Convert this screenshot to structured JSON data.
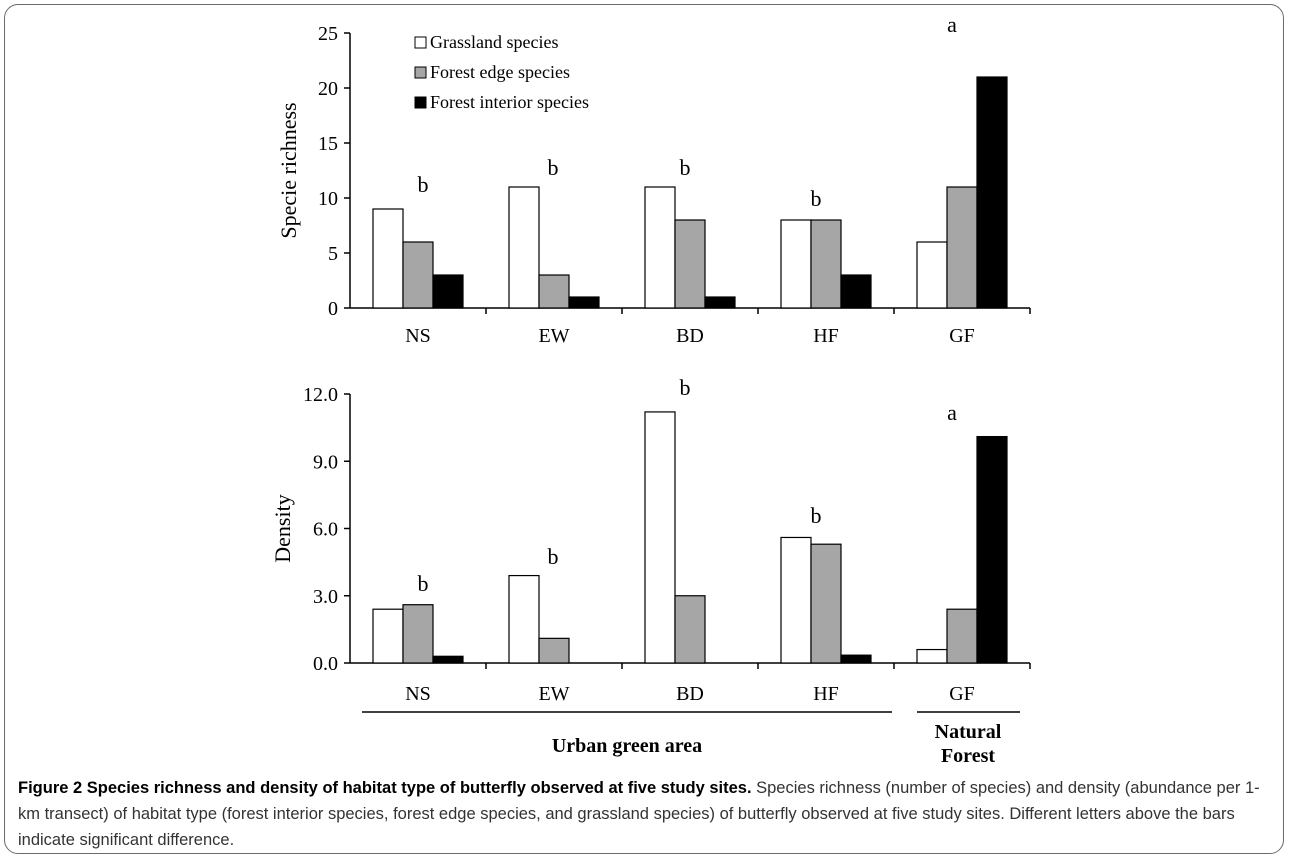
{
  "chart_data": [
    {
      "type": "bar",
      "categories": [
        "NS",
        "EW",
        "BD",
        "HF",
        "GF"
      ],
      "series": [
        {
          "name": "Grassland species",
          "values": [
            9,
            11,
            11,
            8,
            6
          ],
          "color": "#ffffff"
        },
        {
          "name": "Forest edge species",
          "values": [
            6,
            3,
            8,
            8,
            11
          ],
          "color": "#a6a6a6"
        },
        {
          "name": "Forest interior species",
          "values": [
            3,
            1,
            1,
            3,
            21
          ],
          "color": "#000000"
        }
      ],
      "significance_letters": [
        "b",
        "b",
        "b",
        "b",
        "a"
      ],
      "ylabel": "Specie richness",
      "ylim": [
        0,
        25
      ],
      "yticks": [
        "0",
        "5",
        "10",
        "15",
        "20",
        "25"
      ],
      "legend_placement": "top-left",
      "grid": false
    },
    {
      "type": "bar",
      "categories": [
        "NS",
        "EW",
        "BD",
        "HF",
        "GF"
      ],
      "series": [
        {
          "name": "Grassland species",
          "values": [
            2.4,
            3.9,
            11.2,
            5.6,
            0.6
          ],
          "color": "#ffffff"
        },
        {
          "name": "Forest edge species",
          "values": [
            2.6,
            1.1,
            3.0,
            5.3,
            2.4
          ],
          "color": "#a6a6a6"
        },
        {
          "name": "Forest interior species",
          "values": [
            0.3,
            0.0,
            0.0,
            0.35,
            10.1
          ],
          "color": "#000000"
        }
      ],
      "significance_letters": [
        "b",
        "b",
        "b",
        "b",
        "a"
      ],
      "ylabel": "Density",
      "ylim": [
        0,
        12
      ],
      "yticks": [
        "0.0",
        "3.0",
        "6.0",
        "9.0",
        "12.0"
      ],
      "grid": false,
      "group_labels": [
        "Urban green area",
        "Natural\nForest"
      ]
    }
  ],
  "caption": {
    "bold": "Figure 2 Species richness and density of habitat type of butterfly observed at five study sites.",
    "text": " Species richness (number of species) and density (abundance per 1-km transect) of habitat type (forest interior species, forest edge species, and grassland species) of butterfly observed at five study sites. Different letters above the bars indicate significant difference."
  }
}
